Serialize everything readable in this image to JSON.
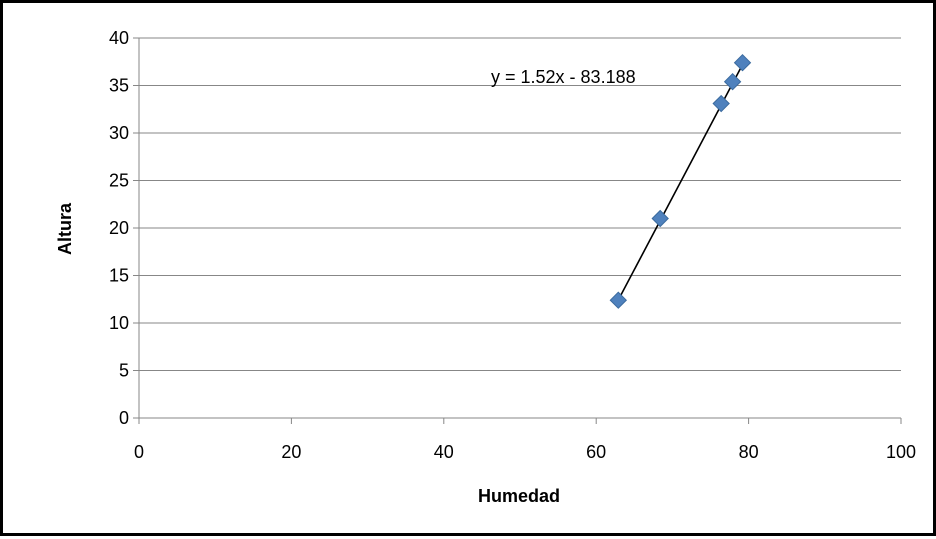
{
  "chart_data": {
    "type": "scatter",
    "xlabel": "Humedad",
    "ylabel": "Altura",
    "xlim": [
      0,
      100
    ],
    "ylim": [
      0,
      40
    ],
    "xticks": [
      0,
      20,
      40,
      60,
      80,
      100
    ],
    "yticks": [
      0,
      5,
      10,
      15,
      20,
      25,
      30,
      35,
      40
    ],
    "grid": "horizontal",
    "series": [
      {
        "x": [
          62.9,
          68.4,
          76.4,
          77.9,
          79.2
        ],
        "y": [
          12.4,
          21.0,
          33.1,
          35.4,
          37.4
        ],
        "color": "#4F81BD",
        "marker": "diamond"
      }
    ],
    "trendline": {
      "type": "linear",
      "slope": 1.52,
      "intercept": -83.188,
      "equation_label": "y = 1.52x - 83.188",
      "color": "#000000"
    }
  }
}
